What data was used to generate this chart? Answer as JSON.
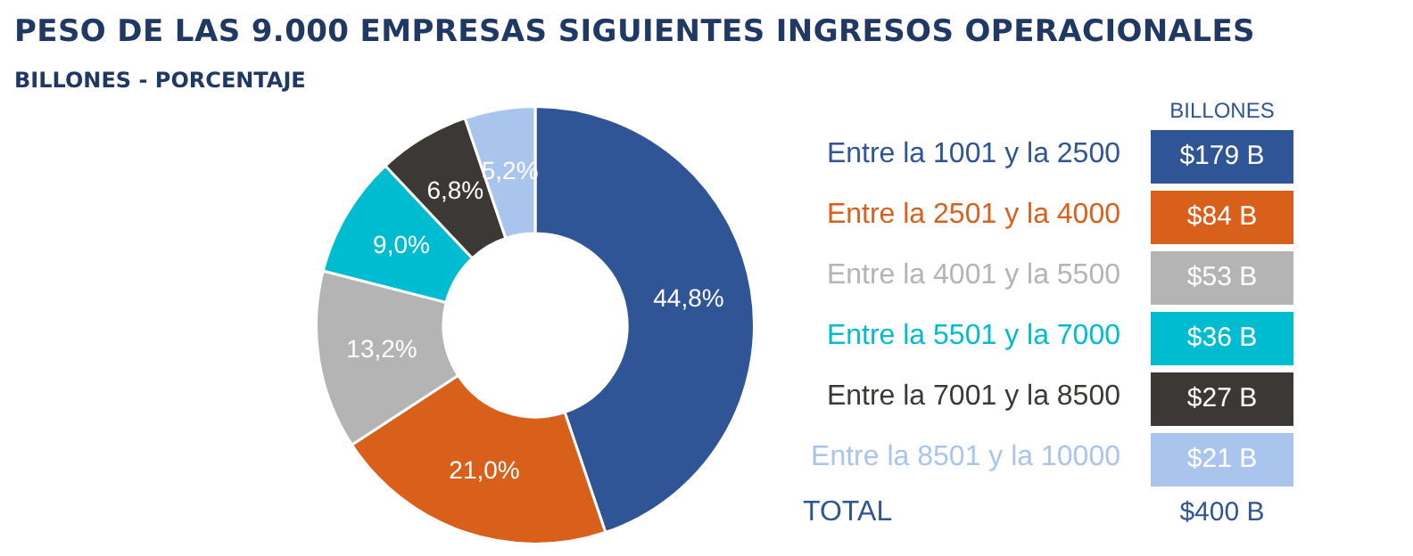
{
  "chart_data": {
    "type": "donut",
    "title": "PESO DE LAS 9.000 EMPRESAS SIGUIENTES INGRESOS OPERACIONALES",
    "subtitle": "BILLONES - PORCENTAJE",
    "categories": [
      "Entre la 1001 y la 2500",
      "Entre la 2501 y la 4000",
      "Entre la 4001 y la 5500",
      "Entre la 5501 y la 7000",
      "Entre la 7001 y la 8500",
      "Entre la 8501 y la 10000"
    ],
    "values": [
      44.8,
      21.0,
      13.2,
      9.0,
      6.8,
      5.2
    ],
    "value_labels": [
      "44,8%",
      "21,0%",
      "13,2%",
      "9,0%",
      "6,8%",
      "5,2%"
    ],
    "colors": [
      "#2f5597",
      "#d9601a",
      "#b4b4b4",
      "#00bcd0",
      "#3b3835",
      "#a9c5ee"
    ],
    "legend": "right",
    "annotations": [
      "BILLONES",
      "$179 B",
      "$84 B",
      "$53 B",
      "$36 B",
      "$27 B",
      "$21 B",
      "TOTAL",
      "$400 B"
    ]
  }
}
